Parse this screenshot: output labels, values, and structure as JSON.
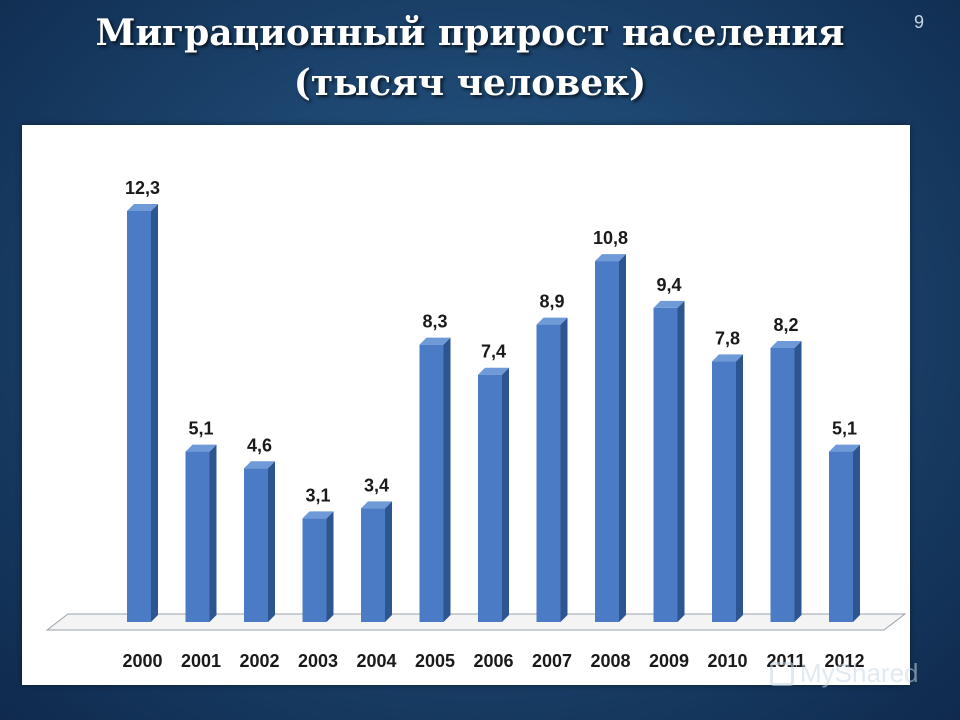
{
  "slide": {
    "title_line1": "Миграционный прирост населения",
    "title_line2": "(тысяч человек)",
    "page_number": "9",
    "watermark": "MyShared"
  },
  "colors": {
    "bar_front": "#4a7bc4",
    "bar_side": "#2d5590",
    "bar_top": "#6f9ad8",
    "background": "#1d4670"
  },
  "chart_data": {
    "type": "bar",
    "title": "Миграционный прирост населения (тысяч человек)",
    "categories": [
      "2000",
      "2001",
      "2002",
      "2003",
      "2004",
      "2005",
      "2006",
      "2007",
      "2008",
      "2009",
      "2010",
      "2011",
      "2012"
    ],
    "values": [
      12.3,
      5.1,
      4.6,
      3.1,
      3.4,
      8.3,
      7.4,
      8.9,
      10.8,
      9.4,
      7.8,
      8.2,
      5.1
    ],
    "data_labels": [
      "12,3",
      "5,1",
      "4,6",
      "3,1",
      "3,4",
      "8,3",
      "7,4",
      "8,9",
      "10,8",
      "9,4",
      "7,8",
      "8,2",
      "5,1"
    ],
    "xlabel": "",
    "ylabel": "",
    "ylim": [
      0,
      12.3
    ],
    "grid": false,
    "legend": "none",
    "style": "3d-column"
  }
}
